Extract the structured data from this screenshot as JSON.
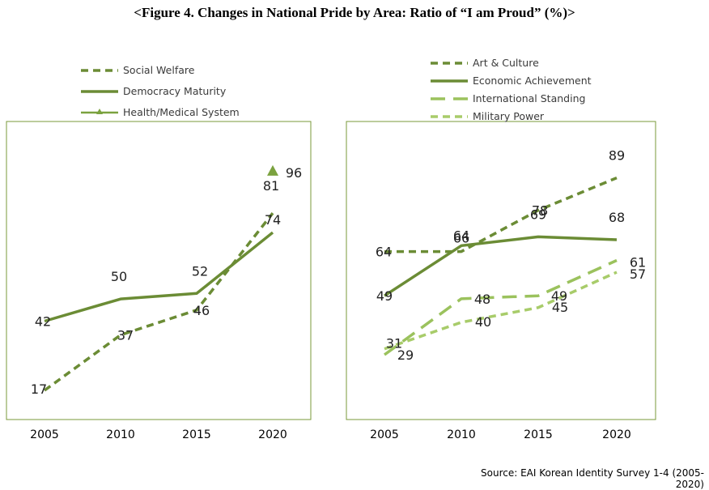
{
  "title": "<Figure 4. Changes in National Pride by Area: Ratio of “I am Proud” (%)>",
  "source": "Source: EAI Korean Identity Survey 1-4 (2005-2020)",
  "colors": {
    "dark": "#6b8c35",
    "medium": "#7ba23f",
    "light": "#9bc25d",
    "lighter": "#a8cc6a",
    "frame": "#7a9a3a"
  },
  "chart_data": [
    {
      "type": "line",
      "title": "",
      "xlabel": "",
      "ylabel": "",
      "categories": [
        "2005",
        "2010",
        "2015",
        "2020"
      ],
      "ylim": [
        10,
        100
      ],
      "grid": false,
      "legend_position": "top",
      "series": [
        {
          "name": "Social Welfare",
          "values": [
            17,
            37,
            46,
            81
          ],
          "labels": [
            "17",
            "37",
            "46",
            "81"
          ],
          "style": "dashed",
          "color": "#6b8c35"
        },
        {
          "name": "Democracy Maturity",
          "values": [
            42,
            50,
            52,
            74
          ],
          "labels": [
            "42",
            "50",
            "52",
            "74"
          ],
          "style": "solid",
          "color": "#6b8c35"
        },
        {
          "name": "Health/Medical System",
          "values": [
            null,
            null,
            null,
            96
          ],
          "labels": [
            "",
            "",
            "",
            "96"
          ],
          "style": "triangle-marker",
          "color": "#7ba23f"
        }
      ]
    },
    {
      "type": "line",
      "title": "",
      "xlabel": "",
      "ylabel": "",
      "categories": [
        "2005",
        "2010",
        "2015",
        "2020"
      ],
      "ylim": [
        10,
        100
      ],
      "grid": false,
      "legend_position": "top",
      "series": [
        {
          "name": "Art & Culture",
          "values": [
            64,
            64,
            78,
            89
          ],
          "labels": [
            "64",
            "64",
            "78",
            "89"
          ],
          "style": "dashed",
          "color": "#6b8c35"
        },
        {
          "name": "Economic Achievement",
          "values": [
            49,
            66,
            69,
            68
          ],
          "labels": [
            "49",
            "66",
            "69",
            "68"
          ],
          "style": "solid",
          "color": "#6b8c35"
        },
        {
          "name": "International Standing",
          "values": [
            29,
            48,
            49,
            61
          ],
          "labels": [
            "29",
            "48",
            "49",
            "61"
          ],
          "style": "longdash",
          "color": "#9bc25d"
        },
        {
          "name": "Military Power",
          "values": [
            31,
            40,
            45,
            57
          ],
          "labels": [
            "31",
            "40",
            "45",
            "57"
          ],
          "style": "dashed",
          "color": "#a8cc6a"
        }
      ]
    }
  ]
}
